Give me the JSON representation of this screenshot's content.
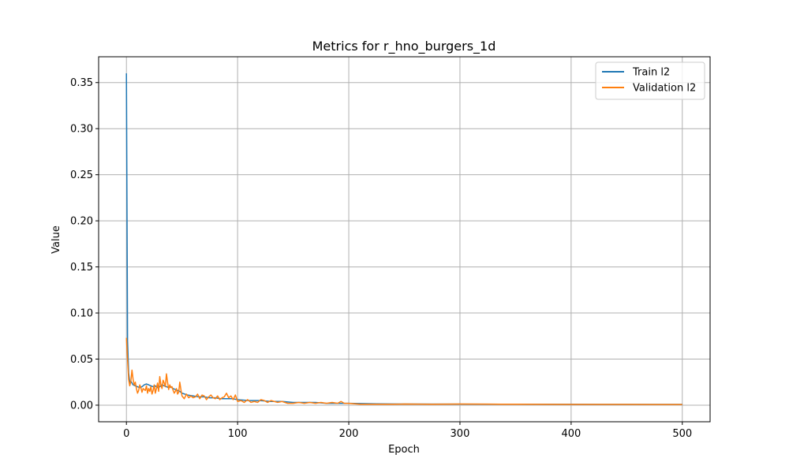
{
  "chart_data": {
    "type": "line",
    "title": "Metrics for r_hno_burgers_1d",
    "xlabel": "Epoch",
    "ylabel": "Value",
    "xlim": [
      -25,
      525
    ],
    "ylim": [
      -0.018,
      0.378
    ],
    "grid": true,
    "legend_position": "top-right",
    "x_ticks": [
      0,
      100,
      200,
      300,
      400,
      500
    ],
    "y_ticks": [
      0.0,
      0.05,
      0.1,
      0.15,
      0.2,
      0.25,
      0.3,
      0.35
    ],
    "x_tick_labels": [
      "0",
      "100",
      "200",
      "300",
      "400",
      "500"
    ],
    "y_tick_labels": [
      "0.00",
      "0.05",
      "0.10",
      "0.15",
      "0.20",
      "0.25",
      "0.30",
      "0.35"
    ],
    "series": [
      {
        "name": "Train l2",
        "color": "#1f77b4",
        "x": [
          0,
          1,
          2,
          3,
          4,
          5,
          6,
          8,
          10,
          12,
          14,
          16,
          18,
          20,
          22,
          24,
          26,
          28,
          30,
          32,
          34,
          36,
          38,
          40,
          42,
          44,
          46,
          48,
          50,
          55,
          60,
          65,
          70,
          75,
          80,
          85,
          90,
          95,
          100,
          110,
          120,
          130,
          140,
          150,
          160,
          170,
          180,
          190,
          200,
          225,
          250,
          300,
          350,
          400,
          450,
          500
        ],
        "values": [
          0.36,
          0.07,
          0.035,
          0.025,
          0.026,
          0.024,
          0.022,
          0.021,
          0.02,
          0.019,
          0.02,
          0.022,
          0.023,
          0.022,
          0.021,
          0.02,
          0.021,
          0.019,
          0.02,
          0.022,
          0.021,
          0.02,
          0.019,
          0.02,
          0.018,
          0.017,
          0.016,
          0.015,
          0.013,
          0.011,
          0.01,
          0.009,
          0.009,
          0.008,
          0.008,
          0.007,
          0.007,
          0.007,
          0.006,
          0.005,
          0.005,
          0.004,
          0.004,
          0.003,
          0.003,
          0.003,
          0.002,
          0.002,
          0.002,
          0.0015,
          0.0012,
          0.0011,
          0.001,
          0.0009,
          0.0008,
          0.0008
        ]
      },
      {
        "name": "Validation l2",
        "color": "#ff7f0e",
        "x": [
          0,
          1,
          2,
          3,
          4,
          5,
          6,
          7,
          8,
          9,
          10,
          11,
          12,
          13,
          14,
          15,
          16,
          17,
          18,
          19,
          20,
          21,
          22,
          23,
          24,
          25,
          26,
          27,
          28,
          29,
          30,
          31,
          32,
          33,
          34,
          35,
          36,
          37,
          38,
          39,
          40,
          41,
          42,
          43,
          44,
          45,
          46,
          47,
          48,
          49,
          50,
          52,
          54,
          56,
          58,
          60,
          62,
          64,
          66,
          68,
          70,
          72,
          74,
          76,
          78,
          80,
          82,
          84,
          86,
          88,
          90,
          92,
          94,
          96,
          98,
          100,
          103,
          106,
          109,
          112,
          115,
          118,
          121,
          124,
          127,
          130,
          133,
          136,
          140,
          145,
          150,
          155,
          160,
          165,
          170,
          175,
          180,
          185,
          190,
          193,
          196,
          200,
          210,
          220,
          230,
          240,
          250,
          275,
          300,
          325,
          350,
          375,
          400,
          425,
          450,
          475,
          500
        ],
        "values": [
          0.073,
          0.05,
          0.028,
          0.021,
          0.026,
          0.038,
          0.028,
          0.022,
          0.025,
          0.018,
          0.013,
          0.016,
          0.022,
          0.019,
          0.014,
          0.018,
          0.017,
          0.016,
          0.021,
          0.013,
          0.018,
          0.015,
          0.02,
          0.012,
          0.016,
          0.022,
          0.013,
          0.018,
          0.024,
          0.015,
          0.031,
          0.022,
          0.018,
          0.027,
          0.024,
          0.02,
          0.034,
          0.025,
          0.017,
          0.022,
          0.019,
          0.02,
          0.016,
          0.013,
          0.015,
          0.018,
          0.012,
          0.014,
          0.025,
          0.017,
          0.01,
          0.007,
          0.012,
          0.008,
          0.01,
          0.008,
          0.009,
          0.012,
          0.007,
          0.011,
          0.01,
          0.006,
          0.009,
          0.011,
          0.008,
          0.007,
          0.01,
          0.006,
          0.008,
          0.009,
          0.013,
          0.008,
          0.01,
          0.006,
          0.011,
          0.004,
          0.005,
          0.003,
          0.006,
          0.003,
          0.004,
          0.003,
          0.006,
          0.005,
          0.003,
          0.005,
          0.004,
          0.003,
          0.004,
          0.002,
          0.002,
          0.003,
          0.002,
          0.003,
          0.002,
          0.003,
          0.002,
          0.003,
          0.002,
          0.004,
          0.002,
          0.002,
          0.001,
          0.001,
          0.001,
          0.001,
          0.0012,
          0.001,
          0.0012,
          0.0011,
          0.001,
          0.0009,
          0.0008,
          0.0008,
          0.0008,
          0.0007,
          0.0007
        ]
      }
    ]
  }
}
